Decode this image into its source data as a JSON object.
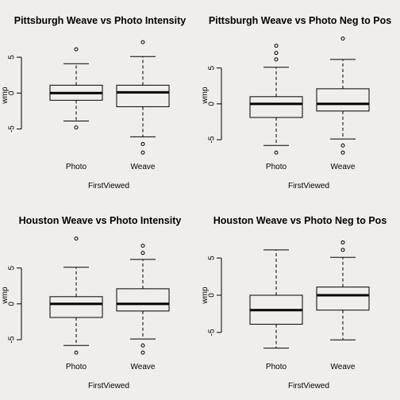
{
  "chart_data": [
    {
      "type": "box",
      "title": "Pittsburgh Weave vs Photo Intensity",
      "xlabel": "FirstViewed",
      "ylabel": "wmp",
      "categories": [
        "Photo",
        "Weave"
      ],
      "yticks": [
        -5,
        0,
        5
      ],
      "ylim": [
        -8.6,
        8.0
      ],
      "boxes": [
        {
          "category": "Photo",
          "whisker_low": -3.9,
          "q1": -1.0,
          "median": 0.0,
          "q3": 1.1,
          "whisker_high": 4.1,
          "outliers": [
            6.1,
            -4.8
          ]
        },
        {
          "category": "Weave",
          "whisker_low": -6.1,
          "q1": -1.9,
          "median": 0.1,
          "q3": 1.1,
          "whisker_high": 5.1,
          "outliers": [
            7.1,
            -7.1,
            -8.3
          ]
        }
      ]
    },
    {
      "type": "box",
      "title": "Pittsburgh Weave vs Photo Neg to Pos",
      "xlabel": "FirstViewed",
      "ylabel": "wmp",
      "categories": [
        "Photo",
        "Weave"
      ],
      "yticks": [
        -5,
        0,
        5
      ],
      "ylim": [
        -7.1,
        9.5
      ],
      "boxes": [
        {
          "category": "Photo",
          "whisker_low": -5.8,
          "q1": -1.9,
          "median": 0.0,
          "q3": 1.0,
          "whisker_high": 5.1,
          "outliers": [
            6.2,
            7.1,
            8.1,
            -6.8
          ]
        },
        {
          "category": "Weave",
          "whisker_low": -4.9,
          "q1": -1.0,
          "median": 0.0,
          "q3": 2.1,
          "whisker_high": 6.2,
          "outliers": [
            9.1,
            -5.8,
            -6.8
          ]
        }
      ]
    },
    {
      "type": "box",
      "title": "Houston Weave vs Photo Intensity",
      "xlabel": "FirstViewed",
      "ylabel": "wmp",
      "categories": [
        "Photo",
        "Weave"
      ],
      "yticks": [
        -5,
        0,
        5
      ],
      "ylim": [
        -7.1,
        9.5
      ],
      "boxes": [
        {
          "category": "Photo",
          "whisker_low": -5.8,
          "q1": -1.9,
          "median": 0.0,
          "q3": 1.0,
          "whisker_high": 5.1,
          "outliers": [
            9.1,
            -6.8
          ]
        },
        {
          "category": "Weave",
          "whisker_low": -4.9,
          "q1": -1.0,
          "median": 0.0,
          "q3": 2.1,
          "whisker_high": 6.2,
          "outliers": [
            7.1,
            8.1,
            -5.8,
            -6.8
          ]
        }
      ]
    },
    {
      "type": "box",
      "title": "Houston Weave vs Photo Neg to Pos",
      "xlabel": "FirstViewed",
      "ylabel": "wmp",
      "categories": [
        "Photo",
        "Weave"
      ],
      "yticks": [
        -5,
        0,
        5
      ],
      "ylim": [
        -8.0,
        8.0
      ],
      "boxes": [
        {
          "category": "Photo",
          "whisker_low": -7.1,
          "q1": -3.9,
          "median": -2.0,
          "q3": 0.0,
          "whisker_high": 6.1,
          "outliers": []
        },
        {
          "category": "Weave",
          "whisker_low": -6.0,
          "q1": -2.0,
          "median": 0.0,
          "q3": 1.1,
          "whisker_high": 5.1,
          "outliers": [
            6.1,
            7.1
          ]
        }
      ]
    }
  ]
}
